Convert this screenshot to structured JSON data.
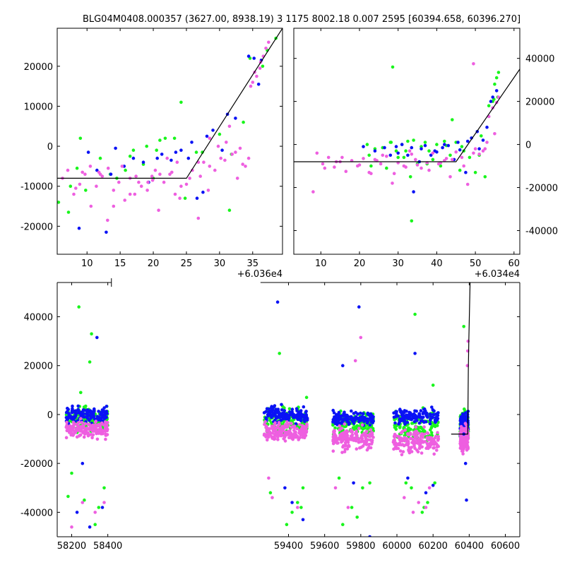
{
  "figure": {
    "title": "BLG04M0408.000357 (3627.00, 8938.19)  3 1175 8002.18 0.007 2595 [60394.658, 60396.270]"
  },
  "colors": {
    "blue": "#0a12f5",
    "green": "#19f51c",
    "magenta": "#ee5fe0",
    "model": "#000000"
  },
  "chart_data": [
    {
      "name": "zoom-left",
      "type": "scatter",
      "x_offset_label": "+6.036e4",
      "xlim": [
        5.5,
        39.5
      ],
      "ylim": [
        -27000,
        29500
      ],
      "xticks": [
        10,
        15,
        20,
        25,
        30,
        35
      ],
      "yticks": [
        -20000,
        -10000,
        0,
        10000,
        20000
      ],
      "yaxis_side": "left",
      "model": {
        "x": [
          5.5,
          25,
          39.5
        ],
        "y": [
          -8000,
          -8000,
          29500
        ]
      },
      "series": [
        {
          "color": "green",
          "x": [
            5.7,
            7.2,
            9,
            12,
            14.5,
            17,
            19,
            20.5,
            21.8,
            23.2,
            24.2,
            8.5,
            13.5,
            16.5,
            21,
            26.5,
            30,
            33.6,
            36.5,
            37.2,
            38.5,
            7.5,
            9.8,
            15.8,
            18.5,
            24.8,
            27.4,
            31.5,
            34.6,
            20,
            31.8
          ],
          "y": [
            -14000,
            -16500,
            2000,
            -3000,
            -8000,
            -1000,
            0,
            -1000,
            2000,
            2000,
            11000,
            -5500,
            -7000,
            -2500,
            1500,
            -1500,
            3000,
            6000,
            20000,
            24000,
            27000,
            -10000,
            -11000,
            -6000,
            -4500,
            -13000,
            -1500,
            -16000,
            22000,
            -8000,
            -2000
          ]
        },
        {
          "color": "blue",
          "x": [
            8.8,
            10.2,
            11.5,
            12.9,
            13.6,
            15.6,
            17,
            18.5,
            19.3,
            20.6,
            21.3,
            22.7,
            24.2,
            25.3,
            26.6,
            28.1,
            29,
            30.4,
            31.2,
            32.4,
            34.4,
            35.2,
            35.9,
            36.3,
            14.3,
            23.4,
            25.8,
            27.5
          ],
          "y": [
            -20500,
            -1500,
            -6000,
            -21500,
            -7000,
            -5000,
            -3000,
            -4000,
            -9000,
            -3000,
            -2000,
            -3500,
            -1000,
            -3000,
            -13000,
            2500,
            4000,
            -1000,
            8000,
            7000,
            22500,
            22000,
            15500,
            21500,
            -500,
            -1500,
            1000,
            -11500
          ]
        },
        {
          "color": "magenta",
          "x": [
            6.3,
            7.1,
            8,
            8.9,
            9.7,
            10.6,
            11.4,
            12.3,
            13.1,
            14,
            14.8,
            15.7,
            16.5,
            17.4,
            18.2,
            19.1,
            19.9,
            20.8,
            21.6,
            22.5,
            23.3,
            24.2,
            25,
            25.9,
            26.8,
            27.6,
            28.5,
            29.3,
            30.2,
            31,
            31.9,
            32.7,
            33.5,
            34.4,
            35,
            35.6,
            36.1,
            36.6,
            37,
            37.4,
            10.5,
            14,
            17.8,
            21,
            24,
            26.8,
            29.8,
            33.1,
            35.3,
            16.5,
            20.3,
            23.6,
            27.1,
            12,
            19.2,
            28.5,
            31.5,
            34.7,
            9.3,
            22.1,
            8.3,
            11.8,
            13.2,
            15.3,
            17.2,
            19.8,
            22.8,
            25.5,
            28.3,
            30.8,
            32.4,
            33.9,
            36.2
          ],
          "y": [
            -8000,
            -6000,
            -12000,
            -9500,
            -7000,
            -15000,
            -10000,
            -7500,
            -18500,
            -11000,
            -9000,
            -13500,
            -8000,
            -7500,
            -10000,
            -11000,
            -8500,
            -16000,
            -9000,
            -7000,
            -12000,
            -10000,
            -9500,
            -6000,
            -18000,
            -4000,
            -5000,
            -6000,
            -3000,
            1000,
            -2000,
            -8000,
            -4500,
            -3000,
            16000,
            17500,
            19500,
            22500,
            24500,
            26000,
            -5000,
            -15000,
            -9000,
            -7000,
            -13000,
            -4000,
            0,
            -500,
            18500,
            -12000,
            -6000,
            -4000,
            -7500,
            -7000,
            -9000,
            2000,
            5000,
            15000,
            -6500,
            -3000,
            -10500,
            -6500,
            -5500,
            -5000,
            -12000,
            -7500,
            -6500,
            -8000,
            -11000,
            -3500,
            -1500,
            -5000,
            21000
          ]
        }
      ]
    },
    {
      "name": "zoom-right",
      "type": "scatter",
      "x_offset_label": "+6.034e4",
      "xlim": [
        3,
        61.5
      ],
      "ylim": [
        -51000,
        54000
      ],
      "xticks": [
        10,
        20,
        30,
        40,
        50,
        60
      ],
      "yticks": [
        -40000,
        -20000,
        0,
        20000,
        40000
      ],
      "yaxis_side": "right",
      "model": {
        "x": [
          3,
          45,
          61.5
        ],
        "y": [
          -8000,
          -8000,
          35000
        ]
      },
      "series": [
        {
          "color": "green",
          "x": [
            28.6,
            33.5,
            22,
            24,
            26,
            28,
            29.5,
            31,
            32.5,
            34,
            36,
            38,
            40,
            42,
            43.5,
            45,
            23,
            27,
            30,
            35,
            39,
            41,
            44,
            46,
            48.5,
            50,
            51,
            52.5,
            53.5,
            54.5,
            55,
            55.5,
            56,
            22.5,
            28.2,
            32,
            37.5,
            42.5,
            47,
            51.5,
            37,
            31.5,
            46.5,
            33.2,
            55.8,
            54.8
          ],
          "y": [
            36000,
            -35500,
            0,
            -2000,
            -1500,
            1000,
            -3000,
            0,
            1500,
            2000,
            -1000,
            -3000,
            0,
            1500,
            -5000,
            1000,
            -10000,
            -11000,
            -6000,
            -9000,
            -7000,
            -10000,
            11500,
            -12000,
            -6000,
            -13000,
            -5000,
            -15000,
            18000,
            20000,
            28000,
            31000,
            33500,
            -5000,
            1000,
            -3000,
            -9000,
            -500,
            -3000,
            4000,
            1000,
            -6000,
            -1000,
            -15000,
            22000,
            21000
          ]
        },
        {
          "color": "blue",
          "x": [
            21,
            24,
            26.5,
            28,
            29.5,
            31,
            32.5,
            34,
            35.5,
            37,
            38.5,
            40,
            41.5,
            43,
            44.5,
            46,
            47.5,
            49,
            50.5,
            52,
            53,
            54,
            55.5,
            33.5,
            39.5,
            45.5,
            30,
            36,
            42,
            48,
            51,
            54.5
          ],
          "y": [
            -1000,
            -3000,
            -1500,
            -5000,
            -1000,
            0,
            -5000,
            -22000,
            -8000,
            -500,
            -5000,
            -3500,
            -1500,
            -500,
            -7000,
            -2500,
            -13000,
            3000,
            6000,
            2000,
            8000,
            20000,
            25000,
            -1500,
            -3000,
            1000,
            -4000,
            -2000,
            0,
            1500,
            -2000,
            22000
          ]
        },
        {
          "color": "magenta",
          "x": [
            8,
            9,
            10.5,
            12,
            13.5,
            15,
            16.5,
            18,
            19.5,
            21,
            22.5,
            24,
            25.5,
            27,
            28.5,
            30,
            31.5,
            33,
            34.5,
            36,
            37.5,
            39,
            40.5,
            42,
            43.5,
            45,
            46.5,
            48,
            49.5,
            51,
            52.5,
            53.5,
            54.5,
            55.5,
            56,
            11,
            15.5,
            20,
            24.5,
            29,
            33.5,
            38,
            42.5,
            47,
            49.5,
            52,
            55,
            14,
            23,
            32,
            41,
            50,
            26,
            35,
            44,
            53
          ],
          "y": [
            -22000,
            -4000,
            -9000,
            -6000,
            -10500,
            -8000,
            -12500,
            -7500,
            -10000,
            -6500,
            -13000,
            -7000,
            -9000,
            -5500,
            -18000,
            -8500,
            -10000,
            -3000,
            -7000,
            -11000,
            -8500,
            -4000,
            -9000,
            -7500,
            -15000,
            -3500,
            -6000,
            -18500,
            37500,
            -4500,
            -2000,
            13000,
            17000,
            19500,
            22000,
            -11000,
            -6000,
            -9500,
            -7500,
            -13500,
            -4500,
            -12000,
            -6500,
            -10000,
            -4000,
            -3000,
            5000,
            -8000,
            -13500,
            -10500,
            -8500,
            -2000,
            -5000,
            -9500,
            -7000,
            1000
          ]
        }
      ]
    },
    {
      "name": "full-lightcurve",
      "type": "scatter",
      "xlim": [
        58120,
        60680
      ],
      "ylim": [
        -50000,
        54000
      ],
      "xticks": [
        58200,
        58400,
        59400,
        59600,
        59800,
        60000,
        60200,
        60400,
        60600
      ],
      "yticks": [
        -40000,
        -20000,
        0,
        20000,
        40000
      ],
      "yaxis_side": "left",
      "seasons": [
        {
          "x": [
            58170,
            58400
          ],
          "blue": [
            0,
            3500
          ],
          "green": [
            -2000,
            5000
          ],
          "magenta": [
            -6000,
            3500
          ]
        },
        {
          "x": [
            59265,
            59505
          ],
          "blue": [
            0,
            3500
          ],
          "green": [
            -3000,
            5500
          ],
          "magenta": [
            -7000,
            3500
          ]
        },
        {
          "x": [
            59645,
            59870
          ],
          "blue": [
            -1500,
            3000
          ],
          "green": [
            -4000,
            6000
          ],
          "magenta": [
            -10000,
            4500
          ]
        },
        {
          "x": [
            59980,
            60230
          ],
          "blue": [
            -1000,
            3500
          ],
          "green": [
            -4000,
            6000
          ],
          "magenta": [
            -11000,
            4500
          ]
        },
        {
          "x": [
            60350,
            60395
          ],
          "blue": [
            -4000,
            5000
          ],
          "green": [
            -4000,
            6000
          ],
          "magenta": [
            -10000,
            5000
          ]
        }
      ],
      "outliers": {
        "green": {
          "x": [
            58240,
            58310,
            58300,
            58180,
            58380,
            58350,
            58270,
            58330,
            59350,
            59470,
            59420,
            59390,
            59480,
            59450,
            59700,
            59750,
            59810,
            59780,
            59850,
            60100,
            60140,
            60170,
            60210,
            60080,
            60370,
            58200,
            59300,
            59680,
            60050,
            60150,
            58250,
            59500,
            60200
          ],
          "y": [
            44000,
            33000,
            21500,
            -33500,
            -30000,
            -38000,
            -35000,
            -45000,
            25000,
            -38000,
            -40000,
            -45000,
            -30000,
            -36000,
            -45000,
            -38000,
            -30000,
            -42000,
            -28000,
            41000,
            -40000,
            -36000,
            -28000,
            -30000,
            36000,
            -24000,
            -32000,
            -26000,
            -28000,
            -38000,
            9000,
            7000,
            12000
          ]
        },
        "blue": {
          "x": [
            58340,
            58300,
            58230,
            58370,
            59340,
            59480,
            59420,
            59790,
            59700,
            59850,
            60100,
            60160,
            60200,
            60380,
            60385,
            58260,
            59380,
            59760,
            60060,
            60370
          ],
          "y": [
            31500,
            -46000,
            -40000,
            -38000,
            46000,
            -43000,
            -36000,
            44000,
            20000,
            -50000,
            25000,
            -32000,
            -29000,
            -20000,
            -35000,
            -20000,
            -30000,
            -28000,
            -26000,
            -8000
          ]
        },
        "magenta": {
          "x": [
            58200,
            58330,
            58380,
            59310,
            59450,
            59770,
            59800,
            59730,
            60120,
            60160,
            60090,
            60180,
            60370,
            60390,
            60392,
            60394,
            58260,
            59290,
            59660,
            60040
          ],
          "y": [
            -46000,
            -40000,
            -36000,
            -34000,
            -38000,
            22000,
            31500,
            -38000,
            -36000,
            -38000,
            -40000,
            -30000,
            -6000,
            20000,
            26000,
            30000,
            -36000,
            -26000,
            -30000,
            -34000
          ]
        }
      },
      "model": {
        "x": [
          60300,
          60392,
          60395,
          60398,
          60405
        ],
        "y": [
          -8000,
          -8000,
          18000,
          30000,
          54000
        ]
      },
      "axis_gap": [
        58420,
        59245
      ]
    }
  ]
}
